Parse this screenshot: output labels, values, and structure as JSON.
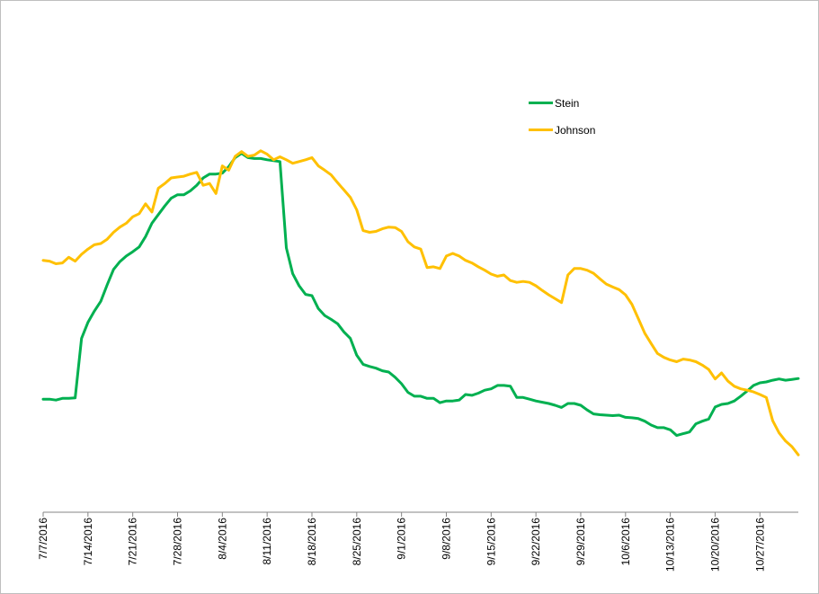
{
  "chart_data": {
    "type": "line",
    "title": "",
    "xlabel": "",
    "ylabel": "",
    "x_tick_labels": [
      "7/7/2016",
      "7/14/2016",
      "7/21/2016",
      "7/28/2016",
      "8/4/2016",
      "8/11/2016",
      "8/18/2016",
      "8/25/2016",
      "9/1/2016",
      "9/8/2016",
      "9/15/2016",
      "9/22/2016",
      "9/29/2016",
      "10/6/2016",
      "10/13/2016",
      "10/20/2016",
      "10/27/2016"
    ],
    "x_range": [
      "7/7/2016",
      "11/2/2016"
    ],
    "ylim": [
      0,
      100
    ],
    "grid": false,
    "legend_position": "top-right",
    "y_axis_labels_shown": false,
    "series": [
      {
        "name": "Stein",
        "color": "#00b050",
        "points": [
          [
            "7/7/2016",
            26.2
          ],
          [
            "7/8/2016",
            26.2
          ],
          [
            "7/9/2016",
            26.0
          ],
          [
            "7/10/2016",
            26.4
          ],
          [
            "7/11/2016",
            26.4
          ],
          [
            "7/12/2016",
            26.5
          ],
          [
            "7/13/2016",
            40.3
          ],
          [
            "7/14/2016",
            44.0
          ],
          [
            "7/15/2016",
            46.6
          ],
          [
            "7/16/2016",
            48.9
          ],
          [
            "7/17/2016",
            52.7
          ],
          [
            "7/18/2016",
            56.3
          ],
          [
            "7/19/2016",
            58.1
          ],
          [
            "7/20/2016",
            59.4
          ],
          [
            "7/21/2016",
            60.4
          ],
          [
            "7/22/2016",
            61.5
          ],
          [
            "7/23/2016",
            63.9
          ],
          [
            "7/24/2016",
            67.0
          ],
          [
            "7/25/2016",
            69.0
          ],
          [
            "7/26/2016",
            71.0
          ],
          [
            "7/27/2016",
            72.8
          ],
          [
            "7/28/2016",
            73.6
          ],
          [
            "7/29/2016",
            73.6
          ],
          [
            "7/30/2016",
            74.5
          ],
          [
            "7/31/2016",
            75.8
          ],
          [
            "8/1/2016",
            77.5
          ],
          [
            "8/2/2016",
            78.4
          ],
          [
            "8/3/2016",
            78.4
          ],
          [
            "8/4/2016",
            78.6
          ],
          [
            "8/5/2016",
            80.1
          ],
          [
            "8/6/2016",
            82.2
          ],
          [
            "8/7/2016",
            83.2
          ],
          [
            "8/8/2016",
            82.2
          ],
          [
            "8/9/2016",
            82.0
          ],
          [
            "8/10/2016",
            82.0
          ],
          [
            "8/11/2016",
            81.7
          ],
          [
            "8/12/2016",
            81.5
          ],
          [
            "8/13/2016",
            81.3
          ],
          [
            "8/14/2016",
            61.3
          ],
          [
            "8/15/2016",
            55.3
          ],
          [
            "8/16/2016",
            52.5
          ],
          [
            "8/17/2016",
            50.5
          ],
          [
            "8/18/2016",
            50.2
          ],
          [
            "8/19/2016",
            47.2
          ],
          [
            "8/20/2016",
            45.6
          ],
          [
            "8/21/2016",
            44.7
          ],
          [
            "8/22/2016",
            43.7
          ],
          [
            "8/23/2016",
            41.8
          ],
          [
            "8/24/2016",
            40.3
          ],
          [
            "8/25/2016",
            36.4
          ],
          [
            "8/26/2016",
            34.3
          ],
          [
            "8/27/2016",
            33.8
          ],
          [
            "8/28/2016",
            33.4
          ],
          [
            "8/29/2016",
            32.8
          ],
          [
            "8/30/2016",
            32.5
          ],
          [
            "8/31/2016",
            31.3
          ],
          [
            "9/1/2016",
            29.8
          ],
          [
            "9/2/2016",
            27.8
          ],
          [
            "9/3/2016",
            26.9
          ],
          [
            "9/4/2016",
            26.9
          ],
          [
            "9/5/2016",
            26.4
          ],
          [
            "9/6/2016",
            26.4
          ],
          [
            "9/7/2016",
            25.4
          ],
          [
            "9/8/2016",
            25.8
          ],
          [
            "9/9/2016",
            25.8
          ],
          [
            "9/10/2016",
            26.0
          ],
          [
            "9/11/2016",
            27.3
          ],
          [
            "9/12/2016",
            27.1
          ],
          [
            "9/13/2016",
            27.6
          ],
          [
            "9/14/2016",
            28.3
          ],
          [
            "9/15/2016",
            28.6
          ],
          [
            "9/16/2016",
            29.4
          ],
          [
            "9/17/2016",
            29.4
          ],
          [
            "9/18/2016",
            29.2
          ],
          [
            "9/19/2016",
            26.6
          ],
          [
            "9/20/2016",
            26.6
          ],
          [
            "9/21/2016",
            26.2
          ],
          [
            "9/22/2016",
            25.8
          ],
          [
            "9/23/2016",
            25.5
          ],
          [
            "9/24/2016",
            25.2
          ],
          [
            "9/25/2016",
            24.8
          ],
          [
            "9/26/2016",
            24.3
          ],
          [
            "9/27/2016",
            25.2
          ],
          [
            "9/28/2016",
            25.2
          ],
          [
            "9/29/2016",
            24.8
          ],
          [
            "9/30/2016",
            23.7
          ],
          [
            "10/1/2016",
            22.8
          ],
          [
            "10/2/2016",
            22.6
          ],
          [
            "10/3/2016",
            22.5
          ],
          [
            "10/4/2016",
            22.4
          ],
          [
            "10/5/2016",
            22.5
          ],
          [
            "10/6/2016",
            22.0
          ],
          [
            "10/7/2016",
            21.9
          ],
          [
            "10/8/2016",
            21.7
          ],
          [
            "10/9/2016",
            21.1
          ],
          [
            "10/10/2016",
            20.2
          ],
          [
            "10/11/2016",
            19.6
          ],
          [
            "10/12/2016",
            19.6
          ],
          [
            "10/13/2016",
            19.1
          ],
          [
            "10/14/2016",
            17.8
          ],
          [
            "10/15/2016",
            18.2
          ],
          [
            "10/16/2016",
            18.6
          ],
          [
            "10/17/2016",
            20.5
          ],
          [
            "10/18/2016",
            21.1
          ],
          [
            "10/19/2016",
            21.6
          ],
          [
            "10/20/2016",
            24.4
          ],
          [
            "10/21/2016",
            25.0
          ],
          [
            "10/22/2016",
            25.2
          ],
          [
            "10/23/2016",
            25.8
          ],
          [
            "10/24/2016",
            26.9
          ],
          [
            "10/25/2016",
            28.1
          ],
          [
            "10/26/2016",
            29.4
          ],
          [
            "10/27/2016",
            30.0
          ],
          [
            "10/28/2016",
            30.2
          ],
          [
            "10/29/2016",
            30.6
          ],
          [
            "10/30/2016",
            30.9
          ],
          [
            "10/31/2016",
            30.6
          ],
          [
            "11/1/2016",
            30.8
          ],
          [
            "11/2/2016",
            31.0
          ]
        ]
      },
      {
        "name": "Johnson",
        "color": "#ffc000",
        "points": [
          [
            "7/7/2016",
            58.4
          ],
          [
            "7/8/2016",
            58.2
          ],
          [
            "7/9/2016",
            57.6
          ],
          [
            "7/10/2016",
            57.8
          ],
          [
            "7/11/2016",
            59.1
          ],
          [
            "7/12/2016",
            58.2
          ],
          [
            "7/13/2016",
            59.8
          ],
          [
            "7/14/2016",
            61.0
          ],
          [
            "7/15/2016",
            62.0
          ],
          [
            "7/16/2016",
            62.3
          ],
          [
            "7/17/2016",
            63.3
          ],
          [
            "7/18/2016",
            64.9
          ],
          [
            "7/19/2016",
            66.1
          ],
          [
            "7/20/2016",
            67.0
          ],
          [
            "7/21/2016",
            68.5
          ],
          [
            "7/22/2016",
            69.2
          ],
          [
            "7/23/2016",
            71.5
          ],
          [
            "7/24/2016",
            69.6
          ],
          [
            "7/25/2016",
            75.1
          ],
          [
            "7/26/2016",
            76.2
          ],
          [
            "7/27/2016",
            77.5
          ],
          [
            "7/28/2016",
            77.7
          ],
          [
            "7/29/2016",
            77.9
          ],
          [
            "7/30/2016",
            78.4
          ],
          [
            "7/31/2016",
            78.8
          ],
          [
            "8/1/2016",
            75.8
          ],
          [
            "8/2/2016",
            76.2
          ],
          [
            "8/3/2016",
            73.9
          ],
          [
            "8/4/2016",
            80.3
          ],
          [
            "8/5/2016",
            79.3
          ],
          [
            "8/6/2016",
            82.5
          ],
          [
            "8/7/2016",
            83.6
          ],
          [
            "8/8/2016",
            82.5
          ],
          [
            "8/9/2016",
            82.8
          ],
          [
            "8/10/2016",
            83.8
          ],
          [
            "8/11/2016",
            83.0
          ],
          [
            "8/12/2016",
            81.7
          ],
          [
            "8/13/2016",
            82.4
          ],
          [
            "8/14/2016",
            81.7
          ],
          [
            "8/15/2016",
            80.9
          ],
          [
            "8/16/2016",
            81.3
          ],
          [
            "8/17/2016",
            81.7
          ],
          [
            "8/18/2016",
            82.2
          ],
          [
            "8/19/2016",
            80.3
          ],
          [
            "8/20/2016",
            79.3
          ],
          [
            "8/21/2016",
            78.2
          ],
          [
            "8/22/2016",
            76.4
          ],
          [
            "8/23/2016",
            74.7
          ],
          [
            "8/24/2016",
            73.0
          ],
          [
            "8/25/2016",
            70.1
          ],
          [
            "8/26/2016",
            65.3
          ],
          [
            "8/27/2016",
            64.9
          ],
          [
            "8/28/2016",
            65.1
          ],
          [
            "8/29/2016",
            65.7
          ],
          [
            "8/30/2016",
            66.1
          ],
          [
            "8/31/2016",
            66.0
          ],
          [
            "9/1/2016",
            65.1
          ],
          [
            "9/2/2016",
            62.7
          ],
          [
            "9/3/2016",
            61.5
          ],
          [
            "9/4/2016",
            61.0
          ],
          [
            "9/5/2016",
            56.7
          ],
          [
            "9/6/2016",
            56.9
          ],
          [
            "9/7/2016",
            56.5
          ],
          [
            "9/8/2016",
            59.4
          ],
          [
            "9/9/2016",
            60.0
          ],
          [
            "9/10/2016",
            59.4
          ],
          [
            "9/11/2016",
            58.4
          ],
          [
            "9/12/2016",
            57.8
          ],
          [
            "9/13/2016",
            56.9
          ],
          [
            "9/14/2016",
            56.1
          ],
          [
            "9/15/2016",
            55.2
          ],
          [
            "9/16/2016",
            54.7
          ],
          [
            "9/17/2016",
            55.0
          ],
          [
            "9/18/2016",
            53.7
          ],
          [
            "9/19/2016",
            53.3
          ],
          [
            "9/20/2016",
            53.5
          ],
          [
            "9/21/2016",
            53.3
          ],
          [
            "9/22/2016",
            52.5
          ],
          [
            "9/23/2016",
            51.4
          ],
          [
            "9/24/2016",
            50.4
          ],
          [
            "9/25/2016",
            49.5
          ],
          [
            "9/26/2016",
            48.6
          ],
          [
            "9/27/2016",
            55.0
          ],
          [
            "9/28/2016",
            56.5
          ],
          [
            "9/29/2016",
            56.5
          ],
          [
            "9/30/2016",
            56.1
          ],
          [
            "10/1/2016",
            55.4
          ],
          [
            "10/2/2016",
            54.1
          ],
          [
            "10/3/2016",
            52.9
          ],
          [
            "10/4/2016",
            52.2
          ],
          [
            "10/5/2016",
            51.6
          ],
          [
            "10/6/2016",
            50.4
          ],
          [
            "10/7/2016",
            48.2
          ],
          [
            "10/8/2016",
            44.9
          ],
          [
            "10/9/2016",
            41.5
          ],
          [
            "10/10/2016",
            39.1
          ],
          [
            "10/11/2016",
            36.8
          ],
          [
            "10/12/2016",
            35.9
          ],
          [
            "10/13/2016",
            35.3
          ],
          [
            "10/14/2016",
            34.9
          ],
          [
            "10/15/2016",
            35.5
          ],
          [
            "10/16/2016",
            35.3
          ],
          [
            "10/17/2016",
            34.9
          ],
          [
            "10/18/2016",
            34.1
          ],
          [
            "10/19/2016",
            33.1
          ],
          [
            "10/20/2016",
            30.9
          ],
          [
            "10/21/2016",
            32.3
          ],
          [
            "10/22/2016",
            30.4
          ],
          [
            "10/23/2016",
            29.2
          ],
          [
            "10/24/2016",
            28.6
          ],
          [
            "10/25/2016",
            28.3
          ],
          [
            "10/26/2016",
            27.9
          ],
          [
            "10/27/2016",
            27.3
          ],
          [
            "10/28/2016",
            26.6
          ],
          [
            "10/29/2016",
            21.2
          ],
          [
            "10/30/2016",
            18.4
          ],
          [
            "10/31/2016",
            16.5
          ],
          [
            "11/1/2016",
            15.2
          ],
          [
            "11/2/2016",
            13.3
          ]
        ]
      }
    ]
  }
}
